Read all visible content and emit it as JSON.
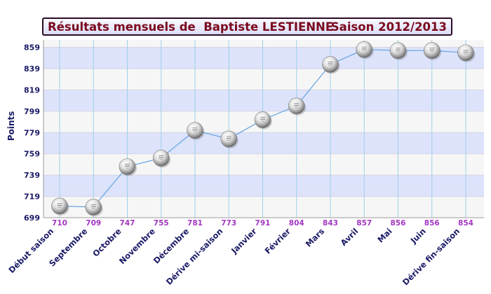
{
  "header": {
    "title": "Résultats mensuels de  Baptiste LESTIENNE",
    "season": "Saison 2012/2013"
  },
  "colors": {
    "band_blue": "#dde3fb",
    "band_white": "#f6f6f6",
    "line": "#63a4e0",
    "gridline": "#9ed0ea",
    "tick_label": "#1a1a66",
    "value_label": "#a236c0",
    "title": "#7a0a1e"
  },
  "chart_data": {
    "type": "line",
    "title": "Résultats mensuels de  Baptiste LESTIENNE",
    "ylabel": "Points",
    "xlabel": "",
    "ylim": [
      699,
      866
    ],
    "yticks": [
      699,
      719,
      739,
      759,
      779,
      799,
      819,
      839,
      859
    ],
    "grid": true,
    "marker": "ball",
    "categories": [
      "Début saison",
      "Septembre",
      "Octobre",
      "Novembre",
      "Décembre",
      "Dérive mi-saison",
      "Janvier",
      "Février",
      "Mars",
      "Avril",
      "Mai",
      "Juin",
      "Dérive fin-saison"
    ],
    "values": [
      710,
      709,
      747,
      755,
      781,
      773,
      791,
      804,
      843,
      857,
      856,
      856,
      854
    ],
    "value_labels": [
      "710",
      "709",
      "747",
      "755",
      "781",
      "773",
      "791",
      "804",
      "843",
      "857",
      "856",
      "856",
      "854"
    ]
  }
}
